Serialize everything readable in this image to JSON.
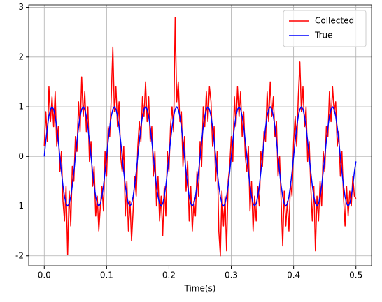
{
  "chart_data": {
    "type": "line",
    "xlabel": "Time(s)",
    "x": [
      0,
      0.0025,
      0.005,
      0.0075,
      0.01,
      0.0125,
      0.015,
      0.0175,
      0.02,
      0.0225,
      0.025,
      0.0275,
      0.03,
      0.0325,
      0.035,
      0.0375,
      0.04,
      0.0425,
      0.045,
      0.0475,
      0.05,
      0.0525,
      0.055,
      0.0575,
      0.06,
      0.0625,
      0.065,
      0.0675,
      0.07,
      0.0725,
      0.075,
      0.0775,
      0.08,
      0.0825,
      0.085,
      0.0875,
      0.09,
      0.0925,
      0.095,
      0.0975,
      0.1,
      0.1025,
      0.105,
      0.1075,
      0.11,
      0.1125,
      0.115,
      0.1175,
      0.12,
      0.1225,
      0.125,
      0.1275,
      0.13,
      0.1325,
      0.135,
      0.1375,
      0.14,
      0.1425,
      0.145,
      0.1475,
      0.15,
      0.1525,
      0.155,
      0.1575,
      0.16,
      0.1625,
      0.165,
      0.1675,
      0.17,
      0.1725,
      0.175,
      0.1775,
      0.18,
      0.1825,
      0.185,
      0.1875,
      0.19,
      0.1925,
      0.195,
      0.1975,
      0.2,
      0.2025,
      0.205,
      0.2075,
      0.21,
      0.2125,
      0.215,
      0.2175,
      0.22,
      0.2225,
      0.225,
      0.2275,
      0.23,
      0.2325,
      0.235,
      0.2375,
      0.24,
      0.2425,
      0.245,
      0.2475,
      0.25,
      0.2525,
      0.255,
      0.2575,
      0.26,
      0.2625,
      0.265,
      0.2675,
      0.27,
      0.2725,
      0.275,
      0.2775,
      0.28,
      0.2825,
      0.285,
      0.2875,
      0.29,
      0.2925,
      0.295,
      0.2975,
      0.3,
      0.3025,
      0.305,
      0.3075,
      0.31,
      0.3125,
      0.315,
      0.3175,
      0.32,
      0.3225,
      0.325,
      0.3275,
      0.33,
      0.3325,
      0.335,
      0.3375,
      0.34,
      0.3425,
      0.345,
      0.3475,
      0.35,
      0.3525,
      0.355,
      0.3575,
      0.36,
      0.3625,
      0.365,
      0.3675,
      0.37,
      0.3725,
      0.375,
      0.3775,
      0.38,
      0.3825,
      0.385,
      0.3875,
      0.39,
      0.3925,
      0.395,
      0.3975,
      0.4,
      0.4025,
      0.405,
      0.4075,
      0.41,
      0.4125,
      0.415,
      0.4175,
      0.42,
      0.4225,
      0.425,
      0.4275,
      0.43,
      0.4325,
      0.435,
      0.4375,
      0.44,
      0.4425,
      0.445,
      0.4475,
      0.45,
      0.4525,
      0.455,
      0.4575,
      0.46,
      0.4625,
      0.465,
      0.4675,
      0.47,
      0.4725,
      0.475,
      0.4775,
      0.48,
      0.4825,
      0.485,
      0.4875,
      0.49,
      0.4925,
      0.495,
      0.4975,
      0.5
    ],
    "series": [
      {
        "name": "Collected",
        "color": "#ff0000",
        "values": [
          0.2,
          0.9,
          0.3,
          1.4,
          0.7,
          1.2,
          0.6,
          1.3,
          0.2,
          0.6,
          -0.3,
          0.1,
          -0.9,
          -1.3,
          -0.6,
          -1.98,
          -0.7,
          -1.4,
          -0.2,
          -0.5,
          0.4,
          0.1,
          1.1,
          0.5,
          1.6,
          0.8,
          1.3,
          0.5,
          1.0,
          -0.1,
          0.3,
          -0.6,
          -0.2,
          -1.2,
          -0.8,
          -1.5,
          -1.0,
          -0.6,
          -1.1,
          0.1,
          -0.4,
          0.6,
          0.4,
          1.2,
          2.2,
          0.9,
          1.4,
          0.6,
          1.1,
          0.0,
          -0.3,
          0.2,
          -1.2,
          -0.5,
          -1.5,
          -0.9,
          -1.7,
          -1.1,
          -0.4,
          -0.8,
          0.2,
          0.7,
          0.3,
          1.2,
          0.8,
          1.5,
          0.7,
          1.2,
          0.3,
          0.6,
          -0.4,
          0.1,
          -1.0,
          -0.4,
          -1.3,
          -0.8,
          -1.6,
          -0.6,
          -1.2,
          0.1,
          -0.3,
          0.6,
          1.0,
          0.5,
          2.8,
          1.1,
          1.5,
          0.7,
          0.9,
          -0.2,
          0.4,
          -0.7,
          -0.1,
          -1.3,
          -0.6,
          -1.5,
          -0.9,
          -1.2,
          -0.3,
          -0.8,
          0.3,
          -0.2,
          1.0,
          0.6,
          1.3,
          0.7,
          1.4,
          1.1,
          0.2,
          0.6,
          -0.5,
          0.1,
          -1.5,
          -2.0,
          -0.7,
          -1.4,
          -0.8,
          -1.9,
          -0.5,
          -0.2,
          0.4,
          -0.1,
          1.2,
          0.6,
          1.4,
          0.8,
          1.3,
          0.4,
          0.9,
          0.0,
          -0.3,
          0.2,
          -1.1,
          -0.5,
          -1.5,
          -0.8,
          -1.3,
          -0.6,
          -1.0,
          0.1,
          -0.2,
          0.5,
          0.3,
          1.3,
          0.7,
          1.5,
          0.8,
          1.2,
          0.4,
          0.7,
          -0.4,
          0.0,
          -0.9,
          -1.8,
          -0.7,
          -1.4,
          -0.9,
          -1.5,
          -0.5,
          -0.8,
          0.3,
          0.8,
          0.2,
          1.2,
          1.9,
          0.9,
          1.4,
          0.6,
          1.0,
          -0.1,
          0.3,
          -0.6,
          -1.3,
          -0.6,
          -1.9,
          -0.8,
          -1.3,
          -0.5,
          -1.0,
          0.1,
          -0.3,
          0.6,
          0.4,
          1.3,
          0.7,
          1.4,
          0.9,
          1.1,
          0.2,
          0.5,
          -0.4,
          0.1,
          -0.8,
          -1.4,
          -0.6,
          -1.2,
          -0.7,
          -1.0,
          -0.4,
          -0.8,
          -0.85
        ]
      },
      {
        "name": "True",
        "color": "#0000ff",
        "values": [
          0,
          0.309,
          0.588,
          0.809,
          0.951,
          1,
          0.951,
          0.809,
          0.588,
          0.309,
          0,
          -0.309,
          -0.588,
          -0.809,
          -0.951,
          -1,
          -0.951,
          -0.809,
          -0.588,
          -0.309,
          0,
          0.309,
          0.588,
          0.809,
          0.951,
          1,
          0.951,
          0.809,
          0.588,
          0.309,
          0,
          -0.309,
          -0.588,
          -0.809,
          -0.951,
          -1,
          -0.951,
          -0.809,
          -0.588,
          -0.309,
          0,
          0.309,
          0.588,
          0.809,
          0.951,
          1,
          0.951,
          0.809,
          0.588,
          0.309,
          0,
          -0.309,
          -0.588,
          -0.809,
          -0.951,
          -1,
          -0.951,
          -0.809,
          -0.588,
          -0.309,
          0,
          0.309,
          0.588,
          0.809,
          0.951,
          1,
          0.951,
          0.809,
          0.588,
          0.309,
          0,
          -0.309,
          -0.588,
          -0.809,
          -0.951,
          -1,
          -0.951,
          -0.809,
          -0.588,
          -0.309,
          0,
          0.309,
          0.588,
          0.809,
          0.951,
          1,
          0.951,
          0.809,
          0.588,
          0.309,
          0,
          -0.309,
          -0.588,
          -0.809,
          -0.951,
          -1,
          -0.951,
          -0.809,
          -0.588,
          -0.309,
          0,
          0.309,
          0.588,
          0.809,
          0.951,
          1,
          0.951,
          0.809,
          0.588,
          0.309,
          0,
          -0.309,
          -0.588,
          -0.809,
          -0.951,
          -1,
          -0.951,
          -0.809,
          -0.588,
          -0.309,
          0,
          0.309,
          0.588,
          0.809,
          0.951,
          1,
          0.951,
          0.809,
          0.588,
          0.309,
          0,
          -0.309,
          -0.588,
          -0.809,
          -0.951,
          -1,
          -0.951,
          -0.809,
          -0.588,
          -0.309,
          0,
          0.309,
          0.588,
          0.809,
          0.951,
          1,
          0.951,
          0.809,
          0.588,
          0.309,
          0,
          -0.309,
          -0.588,
          -0.809,
          -0.951,
          -1,
          -0.951,
          -0.809,
          -0.588,
          -0.309,
          0,
          0.309,
          0.588,
          0.809,
          0.951,
          1,
          0.951,
          0.809,
          0.588,
          0.309,
          0,
          -0.309,
          -0.588,
          -0.809,
          -0.951,
          -1,
          -0.951,
          -0.809,
          -0.588,
          -0.309,
          0,
          0.309,
          0.588,
          0.809,
          0.951,
          1,
          0.951,
          0.809,
          0.588,
          0.309,
          0,
          -0.309,
          -0.588,
          -0.809,
          -0.951,
          -1,
          -0.951,
          -0.809,
          -0.588,
          -0.309,
          -0.1
        ]
      }
    ],
    "xlim": [
      -0.025,
      0.525
    ],
    "xticks": [
      {
        "value": 0,
        "label": "0.0"
      },
      0.1,
      0.2,
      0.3,
      0.4,
      0.5
    ],
    "ylim": [
      -2.2,
      3.05
    ],
    "yticks": [
      -2,
      -1,
      0,
      1,
      2,
      3
    ],
    "grid": true,
    "legend": "upper right"
  }
}
